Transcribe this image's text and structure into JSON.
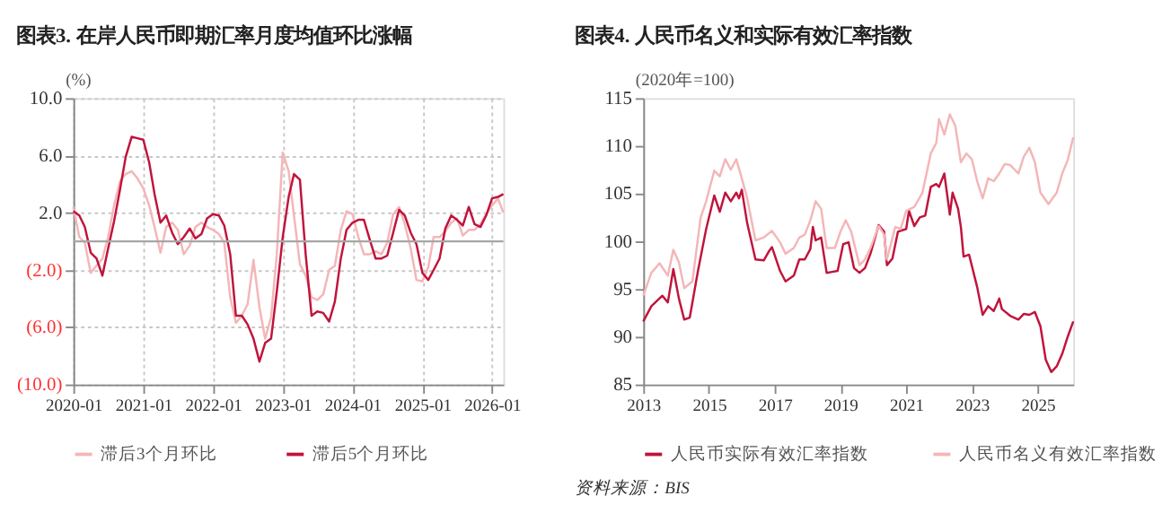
{
  "chart_data": [
    {
      "type": "line",
      "title": "图表3. 在岸人民币即期汇率月度均值环比涨幅",
      "ylabel": "(%)",
      "legend": "bottom",
      "grid": true,
      "line_style": "solid",
      "marker": "none",
      "ylim": [
        -10,
        10
      ],
      "yticks": [
        {
          "value": 10,
          "label": "10.0"
        },
        {
          "value": 6,
          "label": "6.0"
        },
        {
          "value": 2,
          "label": "2.0"
        },
        {
          "value": -2,
          "label": "(2.0)"
        },
        {
          "value": -6,
          "label": "(6.0)"
        },
        {
          "value": -10,
          "label": "(10.0)"
        }
      ],
      "xlim": [
        "2020-01",
        "2026-03"
      ],
      "xticks": [
        "2020-01",
        "2021-01",
        "2022-01",
        "2023-01",
        "2024-01",
        "2025-01",
        "2026-01"
      ],
      "x": [
        "2020-01",
        "2020-02",
        "2020-03",
        "2020-04",
        "2020-05",
        "2020-06",
        "2020-07",
        "2020-08",
        "2020-09",
        "2020-10",
        "2020-11",
        "2020-12",
        "2021-01",
        "2021-02",
        "2021-03",
        "2021-04",
        "2021-05",
        "2021-06",
        "2021-07",
        "2021-08",
        "2021-09",
        "2021-10",
        "2021-11",
        "2021-12",
        "2022-01",
        "2022-02",
        "2022-03",
        "2022-04",
        "2022-05",
        "2022-06",
        "2022-07",
        "2022-08",
        "2022-09",
        "2022-10",
        "2022-11",
        "2022-12",
        "2023-01",
        "2023-02",
        "2023-03",
        "2023-04",
        "2023-05",
        "2023-06",
        "2023-07",
        "2023-08",
        "2023-09",
        "2023-10",
        "2023-11",
        "2023-12",
        "2024-01",
        "2024-02",
        "2024-03",
        "2024-04",
        "2024-05",
        "2024-06",
        "2024-07",
        "2024-08",
        "2024-09",
        "2024-10",
        "2024-11",
        "2024-12",
        "2025-01",
        "2025-02",
        "2025-03",
        "2025-04",
        "2025-05",
        "2025-06",
        "2025-07",
        "2025-08",
        "2025-09",
        "2025-10",
        "2025-11",
        "2025-12",
        "2026-01",
        "2026-02",
        "2026-03"
      ],
      "ref_lines": [
        {
          "axis": "y",
          "value": 0,
          "color": "#a6a6a6"
        }
      ],
      "series": [
        {
          "name": "滞后3个月环比",
          "color": "#f4b6b8",
          "values": [
            2.4,
            0.3,
            -0.1,
            -2.2,
            -1.7,
            -1.2,
            0.3,
            2.5,
            4.2,
            4.7,
            4.9,
            4.4,
            3.7,
            2.5,
            1.0,
            -0.8,
            1.0,
            1.3,
            0.8,
            -0.9,
            -0.3,
            1.0,
            1.3,
            1.0,
            0.8,
            0.5,
            -0.1,
            -3.9,
            -5.7,
            -5.2,
            -4.4,
            -1.3,
            -4.6,
            -6.8,
            -5.3,
            -0.9,
            6.2,
            4.9,
            1.8,
            -1.6,
            -2.4,
            -3.9,
            -4.1,
            -3.7,
            -2.0,
            -1.7,
            0.8,
            2.1,
            1.9,
            0.3,
            -0.9,
            -0.9,
            -0.7,
            -0.9,
            -0.1,
            1.9,
            2.4,
            1.2,
            -0.5,
            -2.7,
            -2.8,
            -1.8,
            0.3,
            0.3,
            0.7,
            1.3,
            1.6,
            0.4,
            0.8,
            0.8,
            1.2,
            1.9,
            2.5,
            3.0,
            2.0
          ]
        },
        {
          "name": "滞后5个月环比",
          "color": "#c0143c",
          "values": [
            2.1,
            1.8,
            1.0,
            -0.8,
            -1.2,
            -2.4,
            -0.5,
            1.4,
            3.6,
            5.9,
            7.3,
            7.2,
            7.1,
            5.5,
            3.3,
            1.3,
            1.8,
            0.6,
            -0.2,
            0.3,
            0.9,
            0.2,
            0.5,
            1.6,
            1.9,
            1.8,
            1.1,
            -0.9,
            -5.2,
            -5.2,
            -5.8,
            -6.8,
            -8.4,
            -7.1,
            -6.8,
            -3.5,
            0.3,
            3.1,
            4.7,
            4.3,
            -0.9,
            -5.2,
            -4.9,
            -5.0,
            -5.6,
            -4.2,
            -1.2,
            0.8,
            1.3,
            1.5,
            1.5,
            0.1,
            -1.2,
            -1.2,
            -1.0,
            0.6,
            2.2,
            1.8,
            0.6,
            -0.2,
            -2.2,
            -2.7,
            -2.0,
            -1.2,
            0.9,
            1.8,
            1.5,
            1.1,
            2.4,
            1.2,
            1.0,
            1.8,
            3.0,
            3.1,
            3.3
          ]
        }
      ]
    },
    {
      "type": "line",
      "title": "图表4. 人民币名义和实际有效汇率指数",
      "ylabel": "(2020年=100)",
      "legend": "bottom",
      "grid": false,
      "line_style": "solid",
      "marker": "none",
      "ylim": [
        85,
        115
      ],
      "yticks": [
        85,
        90,
        95,
        100,
        105,
        110,
        115
      ],
      "xlim": [
        "2013-01",
        "2026-02"
      ],
      "xticks": [
        {
          "value": "2013-01",
          "label": "2013"
        },
        {
          "value": "2015-01",
          "label": "2015"
        },
        {
          "value": "2017-01",
          "label": "2017"
        },
        {
          "value": "2019-01",
          "label": "2019"
        },
        {
          "value": "2021-01",
          "label": "2021"
        },
        {
          "value": "2023-01",
          "label": "2023"
        },
        {
          "value": "2025-01",
          "label": "2025"
        }
      ],
      "annotations": [
        "资料来源：BIS"
      ],
      "series": [
        {
          "name": "人民币实际有效汇率指数",
          "color": "#c0143c",
          "x": [
            "2013-01",
            "2013-04",
            "2013-08",
            "2013-10",
            "2013-12",
            "2014-02",
            "2014-04",
            "2014-06",
            "2014-09",
            "2014-12",
            "2015-03",
            "2015-05",
            "2015-07",
            "2015-09",
            "2015-11",
            "2015-12",
            "2016-01",
            "2016-03",
            "2016-06",
            "2016-09",
            "2016-11",
            "2016-12",
            "2017-03",
            "2017-05",
            "2017-08",
            "2017-10",
            "2017-12",
            "2018-02",
            "2018-03",
            "2018-04",
            "2018-06",
            "2018-08",
            "2018-10",
            "2018-12",
            "2019-02",
            "2019-04",
            "2019-06",
            "2019-08",
            "2019-10",
            "2019-12",
            "2020-03",
            "2020-05",
            "2020-06",
            "2020-08",
            "2020-10",
            "2021-01",
            "2021-02",
            "2021-04",
            "2021-06",
            "2021-08",
            "2021-10",
            "2021-12",
            "2022-01",
            "2022-03",
            "2022-05",
            "2022-06",
            "2022-08",
            "2022-09",
            "2022-10",
            "2022-12",
            "2023-03",
            "2023-05",
            "2023-07",
            "2023-09",
            "2023-11",
            "2023-12",
            "2024-03",
            "2024-06",
            "2024-08",
            "2024-10",
            "2024-12",
            "2025-02",
            "2025-04",
            "2025-06",
            "2025-08",
            "2025-10",
            "2025-12",
            "2026-02"
          ],
          "values": [
            91.6,
            93.2,
            94.3,
            93.6,
            97.1,
            94.0,
            91.8,
            92.0,
            96.9,
            101.3,
            104.8,
            103.1,
            105.1,
            104.2,
            105.1,
            104.5,
            105.4,
            101.9,
            98.1,
            98.0,
            99.0,
            99.4,
            96.9,
            95.8,
            96.4,
            98.1,
            98.1,
            99.2,
            101.5,
            100.1,
            100.4,
            96.7,
            96.8,
            96.9,
            99.7,
            99.9,
            97.2,
            96.7,
            97.2,
            98.7,
            101.7,
            101.0,
            97.5,
            98.2,
            101.0,
            101.3,
            103.2,
            101.6,
            102.5,
            102.7,
            105.7,
            106.0,
            105.7,
            107.1,
            102.8,
            105.1,
            103.4,
            101.5,
            98.4,
            98.6,
            95.2,
            92.3,
            93.2,
            92.7,
            94.0,
            92.9,
            92.2,
            91.8,
            92.4,
            92.3,
            92.6,
            91.1,
            87.6,
            86.3,
            86.9,
            88.2,
            90.0,
            91.6
          ]
        },
        {
          "name": "人民币名义有效汇率指数",
          "color": "#f4b6b8",
          "x": [
            "2013-01",
            "2013-04",
            "2013-07",
            "2013-10",
            "2013-12",
            "2014-02",
            "2014-04",
            "2014-07",
            "2014-10",
            "2014-12",
            "2015-03",
            "2015-05",
            "2015-07",
            "2015-09",
            "2015-11",
            "2016-01",
            "2016-03",
            "2016-06",
            "2016-09",
            "2016-12",
            "2017-03",
            "2017-05",
            "2017-08",
            "2017-10",
            "2017-12",
            "2018-02",
            "2018-04",
            "2018-06",
            "2018-08",
            "2018-11",
            "2019-01",
            "2019-03",
            "2019-05",
            "2019-08",
            "2019-10",
            "2019-12",
            "2020-03",
            "2020-05",
            "2020-06",
            "2020-09",
            "2020-11",
            "2021-01",
            "2021-04",
            "2021-07",
            "2021-10",
            "2021-12",
            "2022-01",
            "2022-03",
            "2022-05",
            "2022-07",
            "2022-09",
            "2022-11",
            "2023-01",
            "2023-03",
            "2023-05",
            "2023-07",
            "2023-09",
            "2023-11",
            "2024-01",
            "2024-03",
            "2024-06",
            "2024-08",
            "2024-10",
            "2024-12",
            "2025-02",
            "2025-05",
            "2025-08",
            "2025-10",
            "2025-12",
            "2026-02"
          ],
          "values": [
            94.3,
            96.7,
            97.7,
            96.4,
            99.1,
            97.8,
            95.1,
            95.8,
            102.5,
            104.2,
            107.4,
            106.8,
            108.6,
            107.5,
            108.6,
            106.6,
            104.5,
            100.1,
            100.4,
            101.1,
            99.9,
            98.7,
            99.3,
            100.4,
            100.7,
            102.2,
            104.2,
            103.4,
            99.3,
            99.3,
            101.0,
            102.2,
            101.0,
            97.5,
            98.1,
            99.3,
            101.6,
            100.7,
            98.1,
            101.5,
            101.3,
            103.2,
            103.6,
            105.1,
            109.2,
            110.3,
            112.8,
            111.2,
            113.3,
            112.1,
            108.3,
            109.2,
            108.6,
            106.3,
            104.5,
            106.6,
            106.3,
            107.1,
            108.1,
            108.0,
            107.1,
            108.9,
            109.8,
            108.3,
            105.1,
            103.9,
            105.1,
            107.1,
            108.5,
            110.9
          ]
        }
      ]
    }
  ]
}
